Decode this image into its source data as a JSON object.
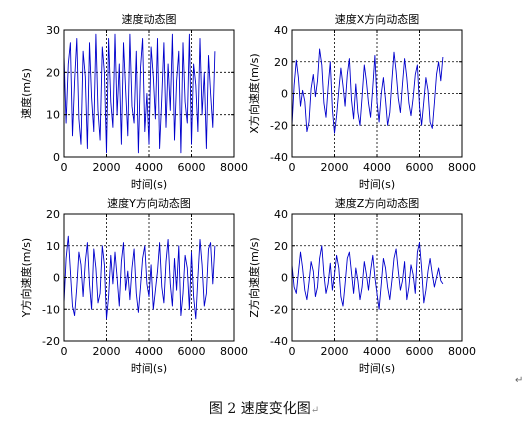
{
  "chart_data": [
    {
      "type": "line",
      "title": "速度动态图",
      "xlabel": "时间(s)",
      "ylabel": "速度(m/s)",
      "xlim": [
        0,
        8000
      ],
      "ylim": [
        0,
        30
      ],
      "xticks": [
        0,
        2000,
        4000,
        6000,
        8000
      ],
      "yticks": [
        0,
        10,
        20,
        30
      ],
      "grid": "dotted",
      "series": [
        {
          "color": "#0000cc",
          "x": [
            0,
            100,
            200,
            300,
            400,
            500,
            600,
            700,
            800,
            900,
            1000,
            1100,
            1200,
            1300,
            1400,
            1500,
            1600,
            1700,
            1800,
            1900,
            2000,
            2100,
            2200,
            2300,
            2400,
            2500,
            2600,
            2700,
            2800,
            2900,
            3000,
            3100,
            3200,
            3300,
            3400,
            3500,
            3600,
            3700,
            3800,
            3900,
            4000,
            4100,
            4200,
            4300,
            4400,
            4500,
            4600,
            4700,
            4800,
            4900,
            5000,
            5100,
            5200,
            5300,
            5400,
            5500,
            5600,
            5700,
            5800,
            5900,
            6000,
            6100,
            6200,
            6300,
            6400,
            6500,
            6600,
            6700,
            6800,
            6900,
            7000,
            7100
          ],
          "y": [
            24,
            8,
            22,
            27,
            5,
            18,
            28,
            9,
            3,
            25,
            19,
            2,
            27,
            14,
            6,
            29,
            11,
            4,
            26,
            20,
            1,
            28,
            13,
            7,
            29,
            10,
            22,
            3,
            27,
            16,
            5,
            29,
            12,
            8,
            25,
            1,
            21,
            28,
            6,
            15,
            3,
            26,
            19,
            9,
            28,
            2,
            14,
            27,
            7,
            22,
            11,
            29,
            4,
            18,
            25,
            1,
            27,
            13,
            8,
            29,
            3,
            22,
            17,
            6,
            28,
            10,
            20,
            2,
            24,
            15,
            7,
            25
          ]
        }
      ]
    },
    {
      "type": "line",
      "title": "速度X方向动态图",
      "xlabel": "时间(s)",
      "ylabel": "X方向速度(m/s)",
      "xlim": [
        0,
        8000
      ],
      "ylim": [
        -40,
        40
      ],
      "xticks": [
        0,
        2000,
        4000,
        6000,
        8000
      ],
      "yticks": [
        -40,
        -20,
        0,
        20,
        40
      ],
      "grid": "dotted",
      "series": [
        {
          "color": "#0000cc",
          "x": [
            0,
            100,
            200,
            300,
            400,
            500,
            600,
            700,
            800,
            900,
            1000,
            1100,
            1200,
            1300,
            1400,
            1500,
            1600,
            1700,
            1800,
            1900,
            2000,
            2100,
            2200,
            2300,
            2400,
            2500,
            2600,
            2700,
            2800,
            2900,
            3000,
            3100,
            3200,
            3300,
            3400,
            3500,
            3600,
            3700,
            3800,
            3900,
            4000,
            4100,
            4200,
            4300,
            4400,
            4500,
            4600,
            4700,
            4800,
            4900,
            5000,
            5100,
            5200,
            5300,
            5400,
            5500,
            5600,
            5700,
            5800,
            5900,
            6000,
            6100,
            6200,
            6300,
            6400,
            6500,
            6600,
            6700,
            6800,
            6900,
            7000,
            7100
          ],
          "y": [
            -20,
            5,
            21,
            10,
            -8,
            2,
            -5,
            -24,
            -18,
            3,
            12,
            -2,
            8,
            28,
            18,
            -6,
            -15,
            4,
            20,
            -10,
            -25,
            -14,
            2,
            16,
            5,
            -8,
            12,
            22,
            -4,
            -16,
            6,
            -12,
            -20,
            -2,
            18,
            8,
            -6,
            -15,
            4,
            24,
            -5,
            -18,
            0,
            10,
            -4,
            -20,
            -12,
            8,
            26,
            14,
            -3,
            -12,
            6,
            22,
            10,
            -6,
            -14,
            -3,
            12,
            18,
            -8,
            -20,
            -5,
            10,
            2,
            -18,
            -22,
            -6,
            12,
            20,
            8,
            23
          ]
        }
      ]
    },
    {
      "type": "line",
      "title": "速度Y方向动态图",
      "xlabel": "时间(s)",
      "ylabel": "Y方向速度(m/s)",
      "xlim": [
        0,
        8000
      ],
      "ylim": [
        -20,
        20
      ],
      "xticks": [
        0,
        2000,
        4000,
        6000,
        8000
      ],
      "yticks": [
        -20,
        -10,
        0,
        10,
        20
      ],
      "grid": "dotted",
      "series": [
        {
          "color": "#0000cc",
          "x": [
            0,
            100,
            200,
            300,
            400,
            500,
            600,
            700,
            800,
            900,
            1000,
            1100,
            1200,
            1300,
            1400,
            1500,
            1600,
            1700,
            1800,
            1900,
            2000,
            2100,
            2200,
            2300,
            2400,
            2500,
            2600,
            2700,
            2800,
            2900,
            3000,
            3100,
            3200,
            3300,
            3400,
            3500,
            3600,
            3700,
            3800,
            3900,
            4000,
            4100,
            4200,
            4300,
            4400,
            4500,
            4600,
            4700,
            4800,
            4900,
            5000,
            5100,
            5200,
            5300,
            5400,
            5500,
            5600,
            5700,
            5800,
            5900,
            6000,
            6100,
            6200,
            6300,
            6400,
            6500,
            6600,
            6700,
            6800,
            6900,
            7000,
            7100
          ],
          "y": [
            -8,
            6,
            13,
            2,
            -9,
            -12,
            -3,
            8,
            4,
            -6,
            5,
            11,
            -2,
            -10,
            9,
            3,
            -8,
            -5,
            10,
            4,
            -13,
            -6,
            7,
            -2,
            8,
            0,
            -9,
            5,
            11,
            -4,
            2,
            -7,
            3,
            9,
            -5,
            -11,
            -3,
            6,
            10,
            -2,
            -6,
            4,
            -10,
            -4,
            2,
            11,
            -3,
            -8,
            5,
            12,
            -2,
            -9,
            6,
            -4,
            10,
            -12,
            -5,
            7,
            3,
            -10,
            8,
            -6,
            -13,
            0,
            12,
            4,
            -9,
            -5,
            9,
            11,
            -2,
            10
          ]
        }
      ]
    },
    {
      "type": "line",
      "title": "速度Z方向动态图",
      "xlabel": "时间(s)",
      "ylabel": "Z方向速度(m/s)",
      "xlim": [
        0,
        8000
      ],
      "ylim": [
        -40,
        40
      ],
      "xticks": [
        0,
        2000,
        4000,
        6000,
        8000
      ],
      "yticks": [
        -40,
        -20,
        0,
        20,
        40
      ],
      "grid": "dotted",
      "series": [
        {
          "color": "#0000cc",
          "x": [
            0,
            100,
            200,
            300,
            400,
            500,
            600,
            700,
            800,
            900,
            1000,
            1100,
            1200,
            1300,
            1400,
            1500,
            1600,
            1700,
            1800,
            1900,
            2000,
            2100,
            2200,
            2300,
            2400,
            2500,
            2600,
            2700,
            2800,
            2900,
            3000,
            3100,
            3200,
            3300,
            3400,
            3500,
            3600,
            3700,
            3800,
            3900,
            4000,
            4100,
            4200,
            4300,
            4400,
            4500,
            4600,
            4700,
            4800,
            4900,
            5000,
            5100,
            5200,
            5300,
            5400,
            5500,
            5600,
            5700,
            5800,
            5900,
            6000,
            6100,
            6200,
            6300,
            6400,
            6500,
            6600,
            6700,
            6800,
            6900,
            7000,
            7100
          ],
          "y": [
            8,
            -6,
            -10,
            3,
            16,
            6,
            -8,
            -14,
            -3,
            10,
            4,
            -12,
            -6,
            12,
            20,
            2,
            -10,
            -4,
            9,
            -8,
            2,
            14,
            6,
            -12,
            -18,
            -4,
            12,
            16,
            3,
            -10,
            6,
            -2,
            -14,
            -6,
            10,
            2,
            -8,
            4,
            14,
            0,
            -10,
            -20,
            -4,
            12,
            6,
            -6,
            -14,
            -2,
            12,
            18,
            4,
            -8,
            -2,
            10,
            -14,
            -6,
            8,
            2,
            -10,
            16,
            22,
            6,
            -16,
            -8,
            4,
            12,
            2,
            -6,
            0,
            6,
            -2,
            -4
          ]
        }
      ]
    }
  ],
  "figure": {
    "caption": "图 2  速度变化图",
    "para_mark": "↵"
  }
}
